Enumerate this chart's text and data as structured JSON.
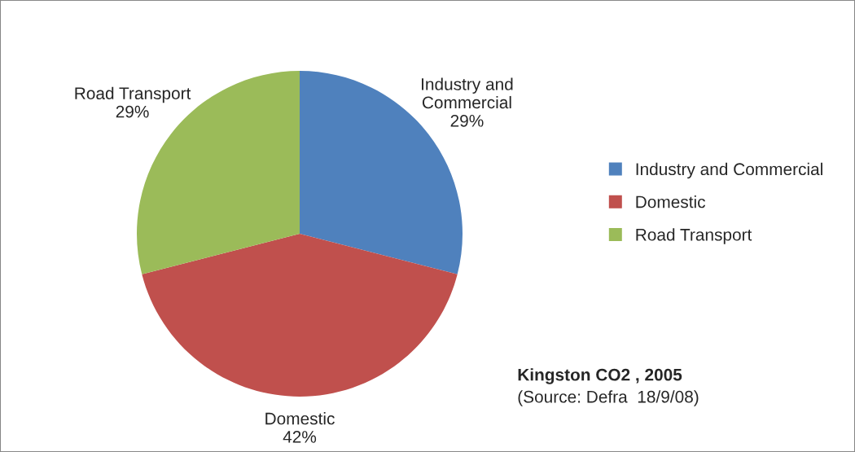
{
  "chart_data": {
    "type": "pie",
    "title": "Kingston CO2 , 2005",
    "annotations": [
      "(Source: Defra  18/9/08)"
    ],
    "categories": [
      "Industry and Commercial",
      "Domestic",
      "Road Transport"
    ],
    "values": [
      29,
      42,
      29
    ],
    "value_labels": [
      "29%",
      "42%",
      "29%"
    ],
    "colors": [
      "#4f81bd",
      "#c0504d",
      "#9bbb59"
    ],
    "legend": "right"
  }
}
